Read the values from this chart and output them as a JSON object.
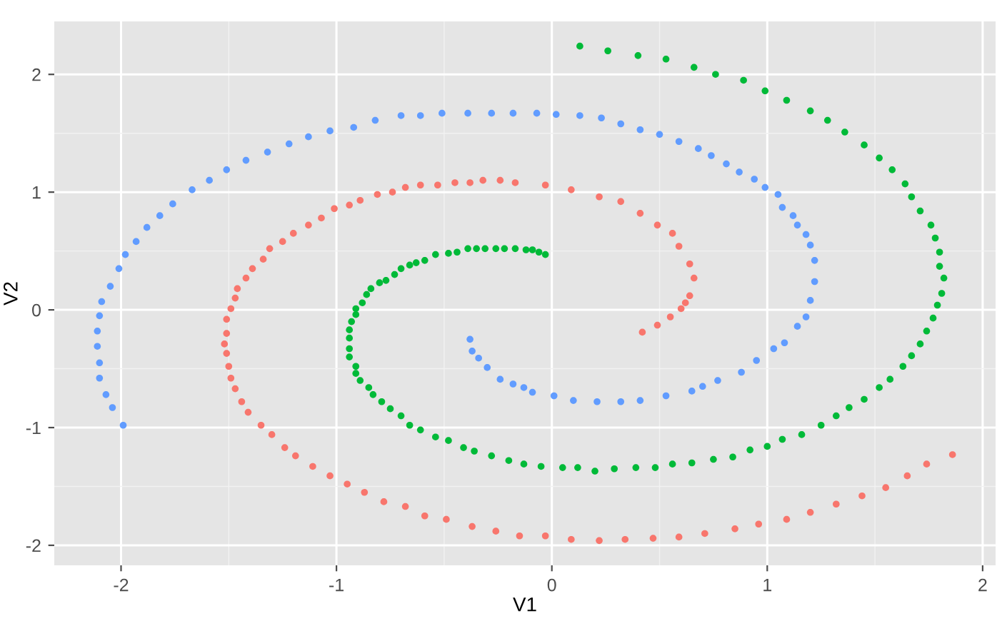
{
  "chart_data": {
    "type": "scatter",
    "xlabel": "V1",
    "ylabel": "V2",
    "xlim": [
      -2.31,
      2.06
    ],
    "ylim": [
      -2.17,
      2.45
    ],
    "xticks": [
      -2,
      -1,
      0,
      1,
      2
    ],
    "yticks": [
      -2,
      -1,
      0,
      1,
      2
    ],
    "grid": true,
    "marker": "circle",
    "series": [
      {
        "color": "#f8766d",
        "x": [
          0.42,
          0.49,
          0.55,
          0.6,
          0.62,
          0.64,
          0.66,
          0.64,
          0.59,
          0.56,
          0.49,
          0.41,
          0.32,
          0.22,
          0.09,
          -0.03,
          -0.17,
          -0.24,
          -0.32,
          -0.38,
          -0.45,
          -0.53,
          -0.61,
          -0.68,
          -0.74,
          -0.81,
          -0.89,
          -0.94,
          -1.01,
          -1.07,
          -1.13,
          -1.2,
          -1.25,
          -1.31,
          -1.34,
          -1.39,
          -1.42,
          -1.46,
          -1.47,
          -1.49,
          -1.51,
          -1.51,
          -1.52,
          -1.51,
          -1.5,
          -1.49,
          -1.47,
          -1.44,
          -1.41,
          -1.35,
          -1.3,
          -1.24,
          -1.19,
          -1.11,
          -1.03,
          -0.95,
          -0.87,
          -0.78,
          -0.68,
          -0.59,
          -0.49,
          -0.37,
          -0.26,
          -0.15,
          -0.03,
          0.09,
          0.22,
          0.34,
          0.47,
          0.59,
          0.71,
          0.85,
          0.96,
          1.09,
          1.2,
          1.32,
          1.44,
          1.55,
          1.65,
          1.74,
          1.86
        ],
        "values": [
          -0.19,
          -0.13,
          -0.06,
          0.01,
          0.06,
          0.12,
          0.27,
          0.39,
          0.54,
          0.65,
          0.72,
          0.82,
          0.92,
          0.96,
          1.02,
          1.06,
          1.08,
          1.1,
          1.1,
          1.08,
          1.08,
          1.06,
          1.06,
          1.04,
          1.0,
          0.98,
          0.93,
          0.89,
          0.86,
          0.78,
          0.72,
          0.65,
          0.58,
          0.52,
          0.43,
          0.35,
          0.27,
          0.18,
          0.1,
          0.01,
          -0.08,
          -0.2,
          -0.29,
          -0.37,
          -0.48,
          -0.58,
          -0.67,
          -0.78,
          -0.87,
          -0.98,
          -1.06,
          -1.17,
          -1.24,
          -1.33,
          -1.41,
          -1.48,
          -1.55,
          -1.63,
          -1.67,
          -1.75,
          -1.78,
          -1.84,
          -1.88,
          -1.92,
          -1.92,
          -1.95,
          -1.96,
          -1.95,
          -1.94,
          -1.93,
          -1.9,
          -1.86,
          -1.82,
          -1.78,
          -1.72,
          -1.65,
          -1.58,
          -1.51,
          -1.41,
          -1.31,
          -1.23
        ]
      },
      {
        "color": "#00ba38",
        "x": [
          -0.03,
          -0.06,
          -0.09,
          -0.12,
          -0.17,
          -0.22,
          -0.26,
          -0.31,
          -0.35,
          -0.39,
          -0.44,
          -0.48,
          -0.54,
          -0.59,
          -0.63,
          -0.66,
          -0.7,
          -0.73,
          -0.77,
          -0.8,
          -0.84,
          -0.86,
          -0.88,
          -0.91,
          -0.91,
          -0.93,
          -0.94,
          -0.94,
          -0.94,
          -0.94,
          -0.91,
          -0.91,
          -0.89,
          -0.85,
          -0.83,
          -0.79,
          -0.75,
          -0.7,
          -0.66,
          -0.61,
          -0.54,
          -0.48,
          -0.41,
          -0.36,
          -0.28,
          -0.2,
          -0.13,
          -0.05,
          0.05,
          0.12,
          0.2,
          0.29,
          0.39,
          0.48,
          0.56,
          0.65,
          0.75,
          0.84,
          0.92,
          1.0,
          1.07,
          1.16,
          1.25,
          1.32,
          1.38,
          1.45,
          1.52,
          1.57,
          1.63,
          1.67,
          1.71,
          1.74,
          1.77,
          1.79,
          1.81,
          1.82,
          1.8,
          1.8,
          1.78,
          1.76,
          1.71,
          1.67,
          1.64,
          1.58,
          1.52,
          1.45,
          1.36,
          1.28,
          1.2,
          1.09,
          0.99,
          0.89,
          0.76,
          0.66,
          0.53,
          0.4,
          0.26,
          0.13
        ],
        "values": [
          0.47,
          0.49,
          0.51,
          0.51,
          0.52,
          0.52,
          0.52,
          0.52,
          0.52,
          0.52,
          0.49,
          0.48,
          0.47,
          0.42,
          0.4,
          0.38,
          0.35,
          0.3,
          0.25,
          0.23,
          0.18,
          0.13,
          0.06,
          0.01,
          -0.04,
          -0.1,
          -0.17,
          -0.24,
          -0.33,
          -0.4,
          -0.48,
          -0.54,
          -0.6,
          -0.66,
          -0.72,
          -0.78,
          -0.84,
          -0.9,
          -0.98,
          -1.02,
          -1.08,
          -1.11,
          -1.17,
          -1.2,
          -1.24,
          -1.28,
          -1.31,
          -1.33,
          -1.34,
          -1.34,
          -1.37,
          -1.35,
          -1.34,
          -1.34,
          -1.31,
          -1.3,
          -1.27,
          -1.25,
          -1.19,
          -1.16,
          -1.1,
          -1.06,
          -0.98,
          -0.9,
          -0.83,
          -0.76,
          -0.66,
          -0.59,
          -0.48,
          -0.39,
          -0.29,
          -0.18,
          -0.07,
          0.04,
          0.14,
          0.27,
          0.37,
          0.49,
          0.61,
          0.72,
          0.84,
          0.96,
          1.07,
          1.19,
          1.29,
          1.4,
          1.51,
          1.61,
          1.69,
          1.78,
          1.86,
          1.95,
          2.0,
          2.06,
          2.13,
          2.16,
          2.2,
          2.24
        ]
      },
      {
        "color": "#619cff",
        "x": [
          -0.38,
          -0.37,
          -0.34,
          -0.3,
          -0.24,
          -0.18,
          -0.13,
          -0.09,
          0.01,
          0.1,
          0.21,
          0.32,
          0.41,
          0.53,
          0.65,
          0.7,
          0.77,
          0.88,
          0.95,
          1.03,
          1.08,
          1.14,
          1.18,
          1.2,
          1.22,
          1.22,
          1.2,
          1.18,
          1.14,
          1.12,
          1.07,
          1.05,
          0.99,
          0.94,
          0.87,
          0.81,
          0.74,
          0.68,
          0.59,
          0.5,
          0.41,
          0.32,
          0.23,
          0.13,
          0.02,
          -0.07,
          -0.18,
          -0.28,
          -0.39,
          -0.51,
          -0.61,
          -0.7,
          -0.82,
          -0.92,
          -1.03,
          -1.13,
          -1.22,
          -1.32,
          -1.42,
          -1.51,
          -1.59,
          -1.67,
          -1.76,
          -1.82,
          -1.88,
          -1.93,
          -1.98,
          -2.01,
          -2.05,
          -2.09,
          -2.1,
          -2.11,
          -2.11,
          -2.1,
          -2.1,
          -2.07,
          -2.04,
          -1.99
        ],
        "values": [
          -0.25,
          -0.35,
          -0.41,
          -0.49,
          -0.59,
          -0.63,
          -0.66,
          -0.7,
          -0.73,
          -0.77,
          -0.78,
          -0.78,
          -0.77,
          -0.73,
          -0.69,
          -0.65,
          -0.6,
          -0.53,
          -0.43,
          -0.33,
          -0.28,
          -0.14,
          -0.06,
          0.08,
          0.24,
          0.42,
          0.55,
          0.64,
          0.72,
          0.8,
          0.87,
          0.98,
          1.04,
          1.11,
          1.17,
          1.24,
          1.31,
          1.37,
          1.43,
          1.49,
          1.53,
          1.58,
          1.63,
          1.65,
          1.66,
          1.67,
          1.67,
          1.67,
          1.67,
          1.67,
          1.65,
          1.65,
          1.61,
          1.55,
          1.52,
          1.47,
          1.41,
          1.34,
          1.27,
          1.19,
          1.1,
          1.02,
          0.9,
          0.8,
          0.7,
          0.58,
          0.47,
          0.35,
          0.2,
          0.07,
          -0.05,
          -0.18,
          -0.31,
          -0.45,
          -0.58,
          -0.72,
          -0.83,
          -0.98
        ]
      }
    ]
  }
}
